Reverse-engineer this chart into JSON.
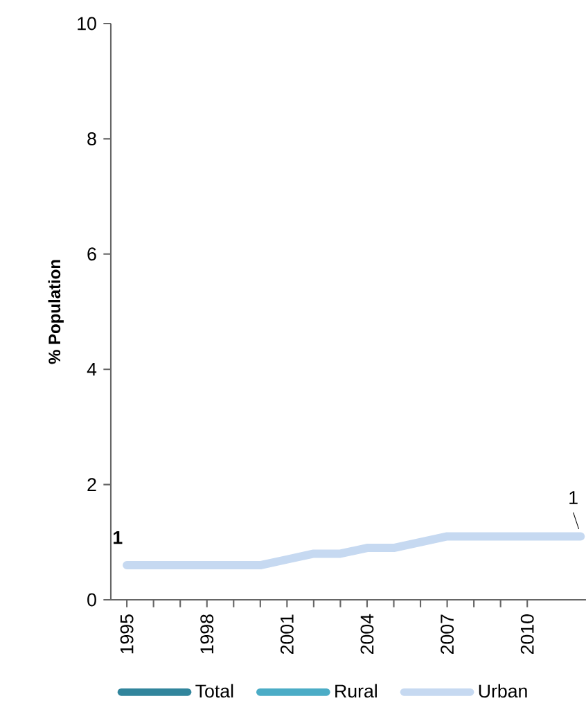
{
  "chart_data": {
    "type": "line",
    "ylabel": "% Population",
    "x": [
      1995,
      1996,
      1997,
      1998,
      1999,
      2000,
      2001,
      2002,
      2003,
      2004,
      2005,
      2006,
      2007,
      2008,
      2009,
      2010,
      2011,
      2012
    ],
    "xlim": [
      1994.4,
      2012.2
    ],
    "xticks": [
      1995,
      1998,
      2001,
      2004,
      2007,
      2010
    ],
    "ylim": [
      0,
      10
    ],
    "yticks": [
      0,
      2,
      4,
      6,
      8,
      10
    ],
    "legend": "bottom",
    "marker": "none",
    "line_style": "solid",
    "annotations": [
      {
        "text": "1",
        "x": 1995,
        "y": 0.6
      },
      {
        "text": "1",
        "x": 2012,
        "y": 1.1
      }
    ],
    "series": [
      {
        "name": "Total",
        "color": "#31859c",
        "values": [
          null,
          null,
          null,
          null,
          null,
          null,
          null,
          null,
          null,
          null,
          null,
          null,
          null,
          null,
          null,
          null,
          null,
          null
        ]
      },
      {
        "name": "Rural",
        "color": "#4bacc6",
        "values": [
          null,
          null,
          null,
          null,
          null,
          null,
          null,
          null,
          null,
          null,
          null,
          null,
          null,
          null,
          null,
          null,
          null,
          null
        ]
      },
      {
        "name": "Urban",
        "color": "#c6d9f1",
        "values": [
          0.6,
          0.6,
          0.6,
          0.6,
          0.6,
          0.6,
          0.7,
          0.8,
          0.8,
          0.9,
          0.9,
          1.0,
          1.1,
          1.1,
          1.1,
          1.1,
          1.1,
          1.1
        ]
      }
    ]
  }
}
